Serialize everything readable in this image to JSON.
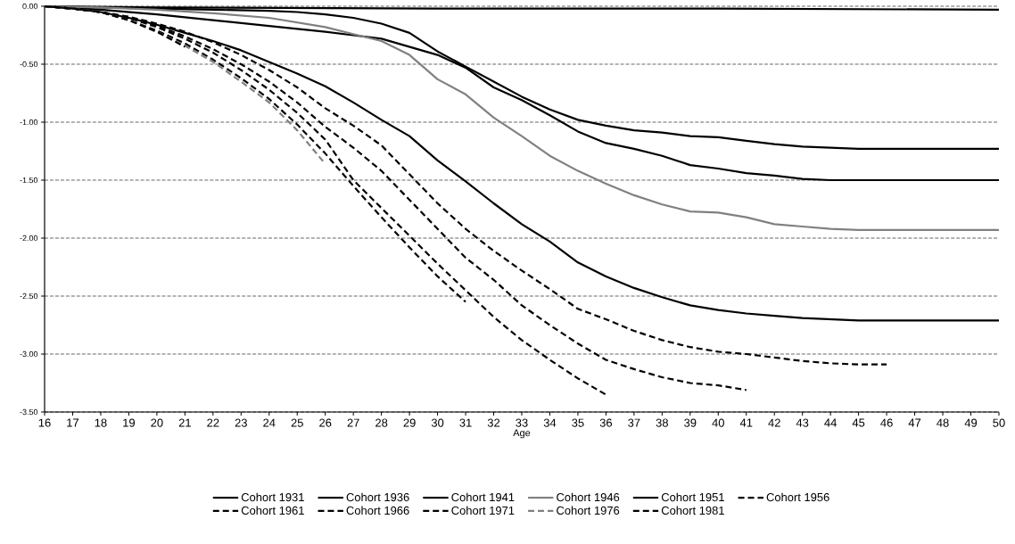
{
  "chart_data": {
    "type": "line",
    "xlabel": "Age",
    "xlim": [
      16,
      50
    ],
    "xticks": [
      16,
      17,
      18,
      19,
      20,
      21,
      22,
      23,
      24,
      25,
      26,
      27,
      28,
      29,
      30,
      31,
      32,
      33,
      34,
      35,
      36,
      37,
      38,
      39,
      40,
      41,
      42,
      43,
      44,
      45,
      46,
      47,
      48,
      49,
      50
    ],
    "ylim": [
      -3.5,
      0
    ],
    "yticks": [
      {
        "value": 0,
        "label": "0.00"
      },
      {
        "value": -0.5,
        "label": "-0.50"
      },
      {
        "value": -1,
        "label": "-1.00"
      },
      {
        "value": -1.5,
        "label": "-1.50"
      },
      {
        "value": -2,
        "label": "-2.00"
      },
      {
        "value": -2.5,
        "label": "-2.50"
      },
      {
        "value": -3,
        "label": "-3.00"
      },
      {
        "value": -3.5,
        "label": "-3.50"
      }
    ],
    "grid": "y",
    "legend": "bottom",
    "marker": "none",
    "series": [
      {
        "name": "Cohort 1931",
        "color": "#000000",
        "line_style": "solid",
        "x": [
          16,
          20,
          30,
          40,
          50
        ],
        "values": [
          0,
          -0.01,
          -0.02,
          -0.02,
          -0.03
        ]
      },
      {
        "name": "Cohort 1936",
        "color": "#000000",
        "line_style": "solid",
        "x": [
          16,
          18,
          20,
          22,
          24,
          25,
          26,
          27,
          28,
          29,
          30,
          31,
          32,
          33,
          34,
          35,
          36,
          37,
          38,
          39,
          40,
          41,
          42,
          43,
          44,
          45,
          50
        ],
        "values": [
          0,
          -0.01,
          -0.02,
          -0.03,
          -0.04,
          -0.05,
          -0.07,
          -0.1,
          -0.15,
          -0.23,
          -0.39,
          -0.52,
          -0.65,
          -0.78,
          -0.89,
          -0.98,
          -1.03,
          -1.07,
          -1.09,
          -1.12,
          -1.13,
          -1.16,
          -1.19,
          -1.21,
          -1.22,
          -1.23,
          -1.23
        ]
      },
      {
        "name": "Cohort 1941",
        "color": "#000000",
        "line_style": "solid",
        "x": [
          16,
          18,
          20,
          22,
          24,
          26,
          27,
          28,
          29,
          30,
          31,
          32,
          33,
          34,
          35,
          36,
          37,
          38,
          39,
          40,
          41,
          42,
          43,
          44,
          45,
          50
        ],
        "values": [
          0,
          -0.03,
          -0.07,
          -0.12,
          -0.17,
          -0.22,
          -0.25,
          -0.28,
          -0.35,
          -0.42,
          -0.53,
          -0.7,
          -0.81,
          -0.94,
          -1.08,
          -1.18,
          -1.23,
          -1.29,
          -1.37,
          -1.4,
          -1.44,
          -1.46,
          -1.49,
          -1.5,
          -1.5,
          -1.5
        ]
      },
      {
        "name": "Cohort 1946",
        "color": "#808080",
        "line_style": "solid",
        "x": [
          16,
          18,
          20,
          22,
          24,
          26,
          27,
          28,
          29,
          30,
          31,
          32,
          33,
          34,
          35,
          36,
          37,
          38,
          39,
          40,
          41,
          42,
          43,
          44,
          45,
          50
        ],
        "values": [
          0,
          -0.01,
          -0.03,
          -0.06,
          -0.1,
          -0.18,
          -0.24,
          -0.3,
          -0.42,
          -0.63,
          -0.76,
          -0.96,
          -1.12,
          -1.29,
          -1.42,
          -1.53,
          -1.63,
          -1.71,
          -1.77,
          -1.78,
          -1.82,
          -1.88,
          -1.9,
          -1.92,
          -1.93,
          -1.93
        ]
      },
      {
        "name": "Cohort 1951",
        "color": "#000000",
        "line_style": "solid",
        "x": [
          16,
          17,
          18,
          19,
          20,
          21,
          22,
          23,
          24,
          25,
          26,
          27,
          28,
          29,
          30,
          31,
          32,
          33,
          34,
          35,
          36,
          37,
          38,
          39,
          40,
          41,
          42,
          43,
          44,
          45,
          50
        ],
        "values": [
          0,
          -0.02,
          -0.05,
          -0.1,
          -0.16,
          -0.23,
          -0.3,
          -0.38,
          -0.48,
          -0.58,
          -0.69,
          -0.83,
          -0.98,
          -1.12,
          -1.33,
          -1.51,
          -1.7,
          -1.88,
          -2.03,
          -2.21,
          -2.33,
          -2.43,
          -2.51,
          -2.58,
          -2.62,
          -2.65,
          -2.67,
          -2.69,
          -2.7,
          -2.71,
          -2.71
        ]
      },
      {
        "name": "Cohort 1956",
        "color": "#000000",
        "line_style": "dashed",
        "x": [
          16,
          17,
          18,
          19,
          20,
          21,
          22,
          23,
          24,
          25,
          26,
          27,
          28,
          29,
          30,
          31,
          32,
          33,
          34,
          35,
          36,
          37,
          38,
          39,
          40,
          41,
          42,
          43,
          44,
          45,
          46
        ],
        "values": [
          0,
          -0.02,
          -0.05,
          -0.09,
          -0.15,
          -0.22,
          -0.31,
          -0.42,
          -0.55,
          -0.7,
          -0.88,
          -1.03,
          -1.2,
          -1.45,
          -1.7,
          -1.92,
          -2.11,
          -2.28,
          -2.44,
          -2.61,
          -2.7,
          -2.8,
          -2.88,
          -2.94,
          -2.98,
          -3.0,
          -3.03,
          -3.06,
          -3.08,
          -3.09,
          -3.09
        ]
      },
      {
        "name": "Cohort 1961",
        "color": "#000000",
        "line_style": "dashed",
        "x": [
          16,
          17,
          18,
          19,
          20,
          21,
          22,
          23,
          24,
          25,
          26,
          27,
          28,
          29,
          30,
          31,
          32,
          33,
          34,
          35,
          36,
          37,
          38,
          39,
          40,
          41
        ],
        "values": [
          0,
          -0.02,
          -0.05,
          -0.1,
          -0.17,
          -0.26,
          -0.37,
          -0.5,
          -0.65,
          -0.83,
          -1.04,
          -1.22,
          -1.42,
          -1.67,
          -1.92,
          -2.17,
          -2.36,
          -2.58,
          -2.75,
          -2.91,
          -3.05,
          -3.13,
          -3.2,
          -3.25,
          -3.27,
          -3.31
        ]
      },
      {
        "name": "Cohort 1966",
        "color": "#000000",
        "line_style": "dashed",
        "x": [
          16,
          17,
          18,
          19,
          20,
          21,
          22,
          23,
          24,
          25,
          26,
          27,
          28,
          29,
          30,
          31,
          32,
          33,
          34,
          35,
          36
        ],
        "values": [
          0,
          -0.02,
          -0.05,
          -0.1,
          -0.18,
          -0.28,
          -0.4,
          -0.55,
          -0.72,
          -0.92,
          -1.15,
          -1.5,
          -1.74,
          -1.98,
          -2.22,
          -2.45,
          -2.68,
          -2.88,
          -3.05,
          -3.21,
          -3.35
        ]
      },
      {
        "name": "Cohort 1971",
        "color": "#000000",
        "line_style": "dashed",
        "x": [
          16,
          17,
          18,
          19,
          20,
          21,
          22,
          23,
          24,
          25,
          26,
          27,
          28,
          29,
          30,
          31
        ],
        "values": [
          0,
          -0.02,
          -0.05,
          -0.12,
          -0.21,
          -0.32,
          -0.46,
          -0.62,
          -0.8,
          -1.02,
          -1.27,
          -1.55,
          -1.82,
          -2.08,
          -2.33,
          -2.55
        ]
      },
      {
        "name": "Cohort 1976",
        "color": "#808080",
        "line_style": "dashed",
        "x": [
          16,
          17,
          18,
          19,
          20,
          21,
          22,
          23,
          24,
          25,
          26
        ],
        "values": [
          0,
          -0.02,
          -0.05,
          -0.12,
          -0.22,
          -0.34,
          -0.48,
          -0.65,
          -0.83,
          -1.07,
          -1.36
        ]
      },
      {
        "name": "Cohort 1981",
        "color": "#000000",
        "line_style": "dashed",
        "x": [
          16,
          17,
          18,
          19,
          20,
          21
        ],
        "values": [
          0,
          -0.02,
          -0.05,
          -0.12,
          -0.22,
          -0.35
        ]
      }
    ]
  }
}
